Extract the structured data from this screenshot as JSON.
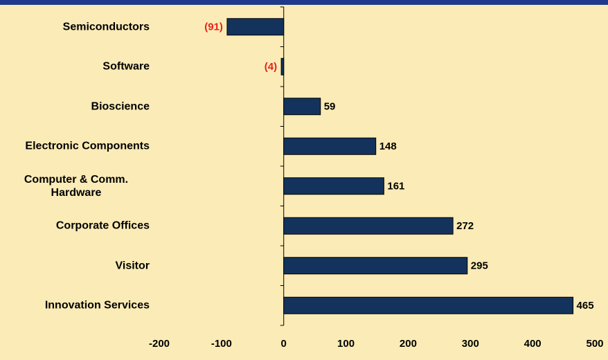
{
  "chart_data": {
    "type": "bar",
    "orientation": "horizontal",
    "categories": [
      "Semiconductors",
      "Software",
      "Bioscience",
      "Electronic Components",
      "Computer & Comm. Hardware",
      "Corporate Offices",
      "Visitor",
      "Innovation Services"
    ],
    "values": [
      -91,
      -4,
      59,
      148,
      161,
      272,
      295,
      465
    ],
    "value_labels": [
      "(91)",
      "(4)",
      "59",
      "148",
      "161",
      "272",
      "295",
      "465"
    ],
    "color": "#14335c",
    "negative_label_color": "#e8221c",
    "xlim": [
      -200,
      500
    ],
    "xticks": [
      -200,
      -100,
      0,
      100,
      200,
      300,
      400,
      500
    ]
  }
}
